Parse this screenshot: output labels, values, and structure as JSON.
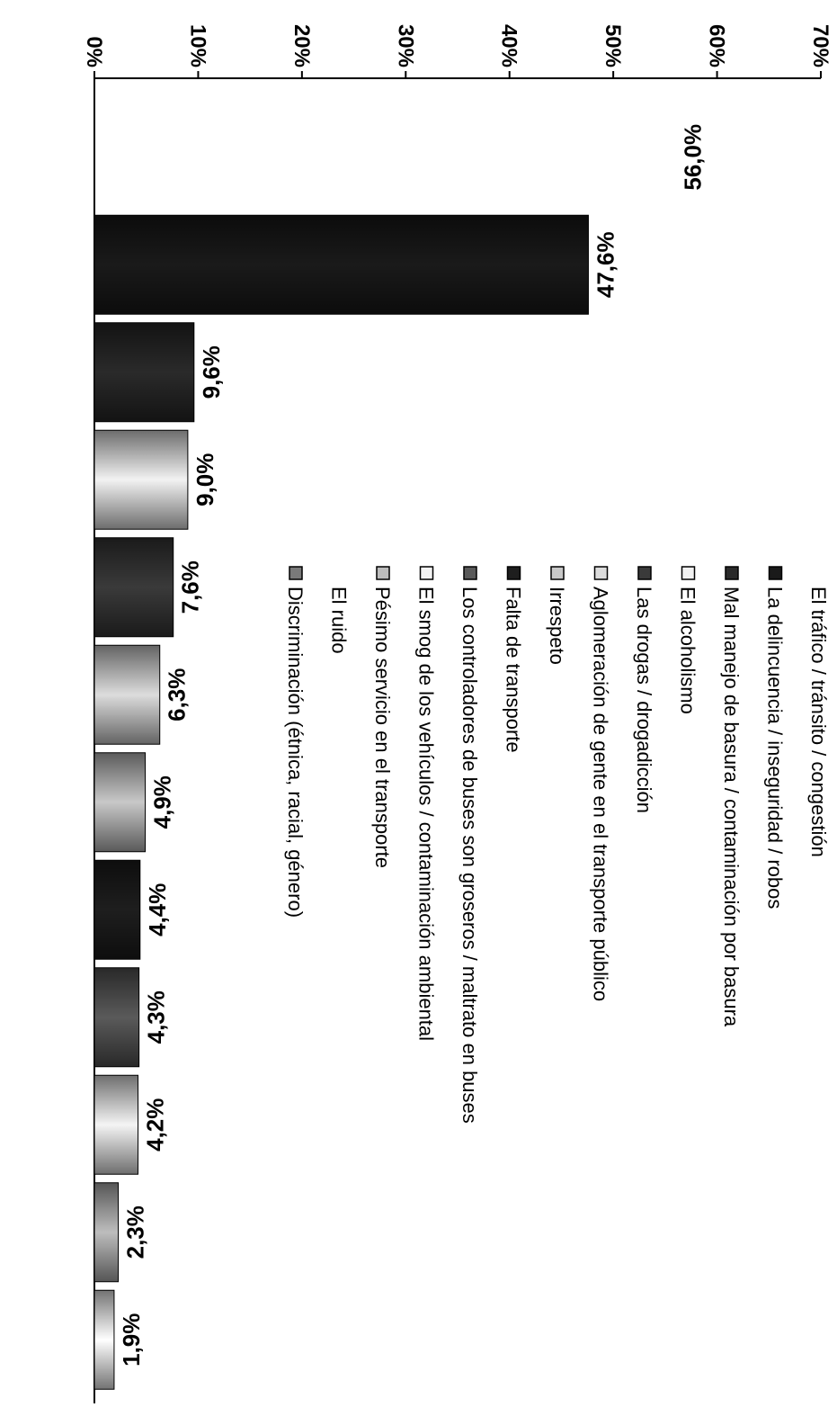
{
  "chart_data": {
    "type": "bar",
    "orientation": "vertical",
    "title": "",
    "xlabel": "",
    "ylabel": "",
    "ylim": [
      0,
      70
    ],
    "y_ticks": [
      "0%",
      "10%",
      "20%",
      "30%",
      "40%",
      "50%",
      "60%",
      "70%"
    ],
    "categories": [
      "El tráfico / tránsito / congestión",
      "La delincuencia / inseguridad / robos",
      "Mal manejo de basura / contaminación por basura",
      "El alcoholismo",
      "Las drogas / drogadicción",
      "Aglomeración de gente en el transporte público",
      "Irrespeto",
      "Falta de transporte",
      "Los controladores de buses son groseros / maltrato en buses",
      "El smog de los vehículos / contaminación ambiental",
      "Pésimo servicio en el transporte",
      "El ruido",
      "Discriminación (étnica, racial, género)"
    ],
    "values": [
      56.0,
      47.6,
      9.6,
      9.0,
      7.6,
      6.3,
      4.9,
      4.4,
      4.3,
      4.2,
      2.3,
      1.9,
      null
    ],
    "value_labels": [
      "56,0%",
      "47,6%",
      "9,6%",
      "9,0%",
      "7,6%",
      "6,3%",
      "4,9%",
      "4,4%",
      "4,3%",
      "4,2%",
      "2,3%",
      "1,9%",
      ""
    ],
    "legend_markers": [
      false,
      true,
      true,
      true,
      true,
      true,
      true,
      true,
      true,
      true,
      true,
      false,
      true
    ],
    "colors": [
      "#ffffff",
      "#1a1a1a",
      "#2a2a2a",
      "#f2f2f2",
      "#3a3a3a",
      "#dcdcdc",
      "#c8c8c8",
      "#1e1e1e",
      "#5a5a5a",
      "#f4f4f4",
      "#bdbdbd",
      "#ffffff",
      "#7a7a7a"
    ],
    "legend_position": "top",
    "grid": false
  }
}
